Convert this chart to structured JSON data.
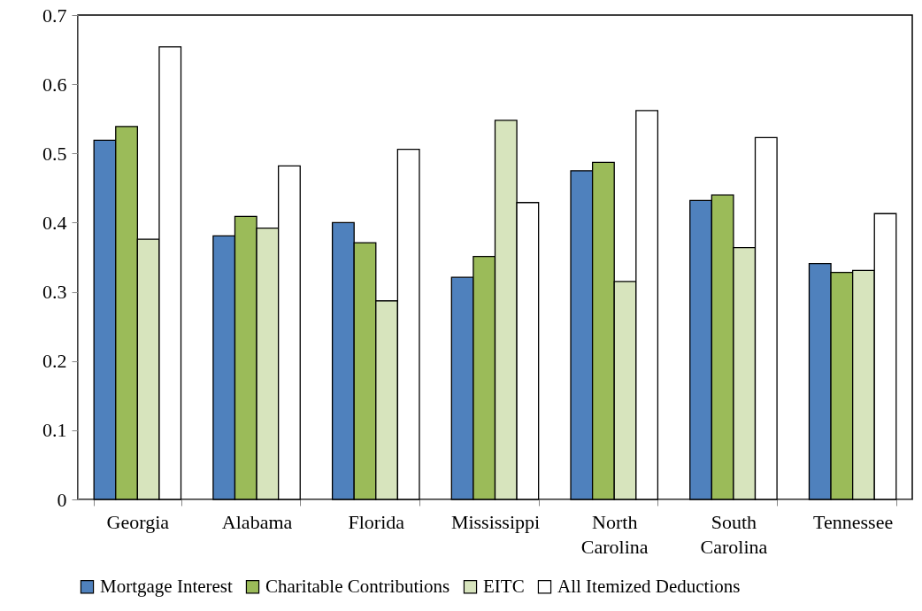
{
  "chart_data": {
    "type": "bar",
    "categories": [
      "Georgia",
      "Alabama",
      "Florida",
      "Mississippi",
      "North Carolina",
      "South Carolina",
      "Tennessee"
    ],
    "series": [
      {
        "name": "Mortgage Interest",
        "color": "#4f81bd",
        "values": [
          0.519,
          0.381,
          0.4,
          0.321,
          0.475,
          0.432,
          0.341
        ]
      },
      {
        "name": "Charitable Contributions",
        "color": "#9bbb59",
        "values": [
          0.539,
          0.409,
          0.371,
          0.351,
          0.487,
          0.44,
          0.328
        ]
      },
      {
        "name": "EITC",
        "color": "#d7e4bd",
        "values": [
          0.376,
          0.392,
          0.287,
          0.548,
          0.315,
          0.364,
          0.331
        ]
      },
      {
        "name": "All Itemized Deductions",
        "color": "#ffffff",
        "values": [
          0.654,
          0.482,
          0.506,
          0.429,
          0.562,
          0.523,
          0.413
        ]
      }
    ],
    "ylim": [
      0,
      0.7
    ],
    "yticks": [
      0,
      0.1,
      0.2,
      0.3,
      0.4,
      0.5,
      0.6,
      0.7
    ],
    "legend": "bottom"
  }
}
